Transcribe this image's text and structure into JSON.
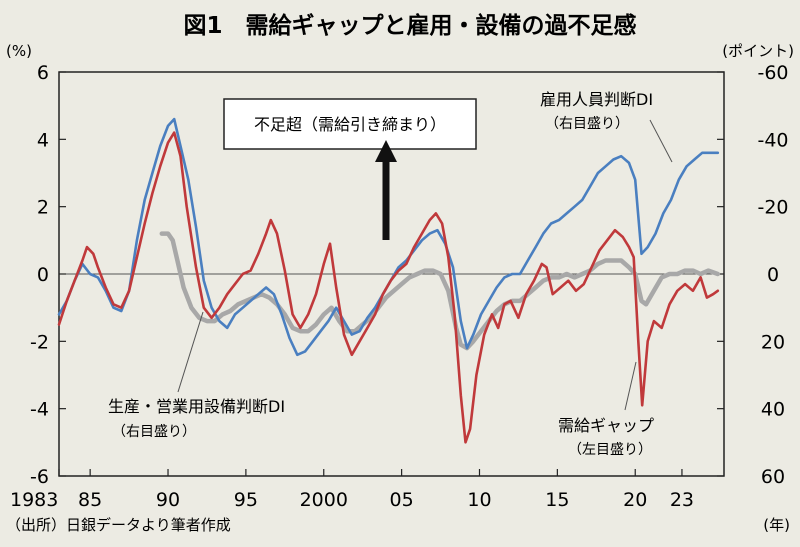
{
  "title": "図1　需給ギャップと雇用・設備の過不足感",
  "source": "（出所）日銀データより筆者作成",
  "colors": {
    "background": "#ecebe3",
    "demand_gap": "#c0393b",
    "employment": "#4a7fc0",
    "equipment": "#a8a8a8",
    "text": "#111111"
  },
  "chart_data": {
    "type": "line",
    "title": "需給ギャップと雇用・設備の過不足感",
    "left_axis": {
      "label": "(%)",
      "range": [
        -6,
        6
      ],
      "ticks": [
        6,
        4,
        2,
        0,
        -2,
        -4,
        -6
      ]
    },
    "right_axis": {
      "label": "(ポイント)",
      "range": [
        -60,
        60
      ],
      "inverted": true,
      "tick_labels": [
        "-60",
        "-40",
        "-20",
        "0",
        "20",
        "40",
        "60"
      ]
    },
    "x_axis": {
      "label": "(年)",
      "range": [
        1983,
        2025.7
      ],
      "ticks": [
        {
          "x": 1983,
          "label": "1983"
        },
        {
          "x": 1985,
          "label": "85"
        },
        {
          "x": 1990,
          "label": "90"
        },
        {
          "x": 1995,
          "label": "95"
        },
        {
          "x": 2000,
          "label": "2000"
        },
        {
          "x": 2005,
          "label": "05"
        },
        {
          "x": 2010,
          "label": "10"
        },
        {
          "x": 2015,
          "label": "15"
        },
        {
          "x": 2020,
          "label": "20"
        },
        {
          "x": 2023,
          "label": "23"
        }
      ]
    },
    "series": [
      {
        "name": "需給ギャップ（左目盛り）",
        "axis": "left",
        "color": "#c0393b",
        "points": [
          [
            1983,
            -1.5
          ],
          [
            1983.5,
            -0.8
          ],
          [
            1984,
            -0.2
          ],
          [
            1984.5,
            0.4
          ],
          [
            1984.8,
            0.8
          ],
          [
            1985.2,
            0.6
          ],
          [
            1985.5,
            0.2
          ],
          [
            1986,
            -0.4
          ],
          [
            1986.5,
            -0.9
          ],
          [
            1987,
            -1.0
          ],
          [
            1987.5,
            -0.5
          ],
          [
            1988,
            0.5
          ],
          [
            1988.5,
            1.5
          ],
          [
            1989,
            2.4
          ],
          [
            1989.5,
            3.2
          ],
          [
            1990,
            3.9
          ],
          [
            1990.4,
            4.2
          ],
          [
            1990.8,
            3.5
          ],
          [
            1991.2,
            2.0
          ],
          [
            1991.8,
            0.2
          ],
          [
            1992.3,
            -1.0
          ],
          [
            1992.8,
            -1.3
          ],
          [
            1993.3,
            -1.0
          ],
          [
            1993.8,
            -0.6
          ],
          [
            1994.3,
            -0.3
          ],
          [
            1994.8,
            0.0
          ],
          [
            1995.3,
            0.1
          ],
          [
            1995.8,
            0.6
          ],
          [
            1996.3,
            1.2
          ],
          [
            1996.6,
            1.6
          ],
          [
            1997,
            1.2
          ],
          [
            1997.5,
            0.1
          ],
          [
            1998,
            -1.2
          ],
          [
            1998.5,
            -1.6
          ],
          [
            1999,
            -1.2
          ],
          [
            1999.5,
            -0.6
          ],
          [
            2000,
            0.3
          ],
          [
            2000.4,
            0.9
          ],
          [
            2000.8,
            -0.4
          ],
          [
            2001.3,
            -1.8
          ],
          [
            2001.8,
            -2.4
          ],
          [
            2002.3,
            -2.0
          ],
          [
            2002.8,
            -1.6
          ],
          [
            2003.3,
            -1.2
          ],
          [
            2003.8,
            -0.6
          ],
          [
            2004.3,
            -0.2
          ],
          [
            2004.8,
            0.1
          ],
          [
            2005.3,
            0.3
          ],
          [
            2005.8,
            0.8
          ],
          [
            2006.3,
            1.2
          ],
          [
            2006.8,
            1.6
          ],
          [
            2007.2,
            1.8
          ],
          [
            2007.6,
            1.5
          ],
          [
            2008,
            0.5
          ],
          [
            2008.4,
            -1.2
          ],
          [
            2008.8,
            -3.6
          ],
          [
            2009.1,
            -5.0
          ],
          [
            2009.4,
            -4.6
          ],
          [
            2009.8,
            -3.0
          ],
          [
            2010.3,
            -1.8
          ],
          [
            2010.8,
            -1.2
          ],
          [
            2011.2,
            -1.6
          ],
          [
            2011.6,
            -0.9
          ],
          [
            2012,
            -0.8
          ],
          [
            2012.5,
            -1.3
          ],
          [
            2013,
            -0.6
          ],
          [
            2013.5,
            -0.2
          ],
          [
            2014,
            0.3
          ],
          [
            2014.3,
            0.2
          ],
          [
            2014.7,
            -0.6
          ],
          [
            2015.2,
            -0.4
          ],
          [
            2015.7,
            -0.2
          ],
          [
            2016.2,
            -0.5
          ],
          [
            2016.7,
            -0.3
          ],
          [
            2017.2,
            0.2
          ],
          [
            2017.7,
            0.7
          ],
          [
            2018.2,
            1.0
          ],
          [
            2018.7,
            1.3
          ],
          [
            2019.2,
            1.1
          ],
          [
            2019.6,
            0.8
          ],
          [
            2019.9,
            0.5
          ],
          [
            2020.2,
            -2.0
          ],
          [
            2020.45,
            -3.9
          ],
          [
            2020.8,
            -2.0
          ],
          [
            2021.2,
            -1.4
          ],
          [
            2021.7,
            -1.6
          ],
          [
            2022.2,
            -0.9
          ],
          [
            2022.7,
            -0.5
          ],
          [
            2023.2,
            -0.3
          ],
          [
            2023.7,
            -0.5
          ],
          [
            2024.2,
            -0.1
          ],
          [
            2024.6,
            -0.7
          ],
          [
            2025,
            -0.6
          ],
          [
            2025.3,
            -0.5
          ]
        ]
      },
      {
        "name": "雇用人員判断DI（右目盛り）",
        "axis": "right",
        "color": "#4a7fc0",
        "points": [
          [
            1983,
            12
          ],
          [
            1983.5,
            8
          ],
          [
            1984,
            2
          ],
          [
            1984.5,
            -3
          ],
          [
            1985,
            0
          ],
          [
            1985.5,
            1
          ],
          [
            1986,
            5
          ],
          [
            1986.5,
            10
          ],
          [
            1987,
            11
          ],
          [
            1987.5,
            5
          ],
          [
            1988,
            -10
          ],
          [
            1988.5,
            -22
          ],
          [
            1989,
            -30
          ],
          [
            1989.5,
            -38
          ],
          [
            1990,
            -44
          ],
          [
            1990.4,
            -46
          ],
          [
            1990.8,
            -38
          ],
          [
            1991.3,
            -28
          ],
          [
            1991.8,
            -14
          ],
          [
            1992.3,
            2
          ],
          [
            1992.8,
            10
          ],
          [
            1993.3,
            14
          ],
          [
            1993.8,
            16
          ],
          [
            1994.3,
            12
          ],
          [
            1994.8,
            10
          ],
          [
            1995.3,
            8
          ],
          [
            1995.8,
            6
          ],
          [
            1996.3,
            4
          ],
          [
            1996.8,
            6
          ],
          [
            1997.3,
            12
          ],
          [
            1997.8,
            19
          ],
          [
            1998.3,
            24
          ],
          [
            1998.8,
            23
          ],
          [
            1999.3,
            20
          ],
          [
            1999.8,
            17
          ],
          [
            2000.3,
            14
          ],
          [
            2000.8,
            10
          ],
          [
            2001.3,
            14
          ],
          [
            2001.8,
            18
          ],
          [
            2002.3,
            17
          ],
          [
            2002.8,
            13
          ],
          [
            2003.3,
            10
          ],
          [
            2003.8,
            6
          ],
          [
            2004.3,
            2
          ],
          [
            2004.8,
            -2
          ],
          [
            2005.3,
            -4
          ],
          [
            2005.8,
            -7
          ],
          [
            2006.3,
            -10
          ],
          [
            2006.8,
            -12
          ],
          [
            2007.3,
            -13
          ],
          [
            2007.8,
            -9
          ],
          [
            2008.3,
            -2
          ],
          [
            2008.8,
            14
          ],
          [
            2009.2,
            22
          ],
          [
            2009.6,
            18
          ],
          [
            2010.1,
            12
          ],
          [
            2010.6,
            8
          ],
          [
            2011.1,
            4
          ],
          [
            2011.6,
            1
          ],
          [
            2012.1,
            0
          ],
          [
            2012.6,
            0
          ],
          [
            2013.1,
            -4
          ],
          [
            2013.6,
            -8
          ],
          [
            2014.1,
            -12
          ],
          [
            2014.6,
            -15
          ],
          [
            2015.1,
            -16
          ],
          [
            2015.6,
            -18
          ],
          [
            2016.1,
            -20
          ],
          [
            2016.6,
            -22
          ],
          [
            2017.1,
            -26
          ],
          [
            2017.6,
            -30
          ],
          [
            2018.1,
            -32
          ],
          [
            2018.6,
            -34
          ],
          [
            2019.1,
            -35
          ],
          [
            2019.6,
            -33
          ],
          [
            2020,
            -28
          ],
          [
            2020.4,
            -6
          ],
          [
            2020.8,
            -8
          ],
          [
            2021.3,
            -12
          ],
          [
            2021.8,
            -18
          ],
          [
            2022.3,
            -22
          ],
          [
            2022.8,
            -28
          ],
          [
            2023.3,
            -32
          ],
          [
            2023.8,
            -34
          ],
          [
            2024.3,
            -36
          ],
          [
            2024.8,
            -36
          ],
          [
            2025.3,
            -36
          ]
        ]
      },
      {
        "name": "生産・営業用設備判断DI（右目盛り）",
        "axis": "right",
        "color": "#a8a8a8",
        "points": [
          [
            1989.6,
            -12
          ],
          [
            1990,
            -12
          ],
          [
            1990.3,
            -10
          ],
          [
            1990.6,
            -4
          ],
          [
            1991,
            4
          ],
          [
            1991.5,
            10
          ],
          [
            1992,
            13
          ],
          [
            1992.5,
            14
          ],
          [
            1993,
            14
          ],
          [
            1993.5,
            12
          ],
          [
            1994,
            11
          ],
          [
            1994.5,
            9
          ],
          [
            1995,
            8
          ],
          [
            1995.5,
            7
          ],
          [
            1996,
            6
          ],
          [
            1996.5,
            7
          ],
          [
            1997,
            9
          ],
          [
            1997.5,
            12
          ],
          [
            1998,
            16
          ],
          [
            1998.5,
            17
          ],
          [
            1999,
            17
          ],
          [
            1999.5,
            15
          ],
          [
            2000,
            12
          ],
          [
            2000.5,
            10
          ],
          [
            2001,
            14
          ],
          [
            2001.5,
            17
          ],
          [
            2002,
            17
          ],
          [
            2002.5,
            15
          ],
          [
            2003,
            13
          ],
          [
            2003.5,
            10
          ],
          [
            2004,
            7
          ],
          [
            2004.5,
            5
          ],
          [
            2005,
            3
          ],
          [
            2005.5,
            1
          ],
          [
            2006,
            0
          ],
          [
            2006.5,
            -1
          ],
          [
            2007,
            -1
          ],
          [
            2007.5,
            0
          ],
          [
            2008,
            5
          ],
          [
            2008.5,
            16
          ],
          [
            2008.8,
            21
          ],
          [
            2009.2,
            22
          ],
          [
            2009.6,
            20
          ],
          [
            2010.1,
            17
          ],
          [
            2010.6,
            14
          ],
          [
            2011.1,
            11
          ],
          [
            2011.6,
            9
          ],
          [
            2012.1,
            8
          ],
          [
            2012.6,
            8
          ],
          [
            2013.1,
            6
          ],
          [
            2013.6,
            4
          ],
          [
            2014.1,
            2
          ],
          [
            2014.6,
            1
          ],
          [
            2015.1,
            1
          ],
          [
            2015.6,
            0
          ],
          [
            2016.1,
            1
          ],
          [
            2016.6,
            0
          ],
          [
            2017.1,
            -1
          ],
          [
            2017.6,
            -3
          ],
          [
            2018.1,
            -4
          ],
          [
            2018.6,
            -4
          ],
          [
            2019.1,
            -4
          ],
          [
            2019.6,
            -2
          ],
          [
            2020,
            0
          ],
          [
            2020.4,
            8
          ],
          [
            2020.7,
            9
          ],
          [
            2021.2,
            5
          ],
          [
            2021.7,
            1
          ],
          [
            2022.2,
            0
          ],
          [
            2022.7,
            0
          ],
          [
            2023.2,
            -1
          ],
          [
            2023.7,
            -1
          ],
          [
            2024.2,
            0
          ],
          [
            2024.7,
            -1
          ],
          [
            2025.3,
            0
          ]
        ]
      }
    ],
    "annotations": {
      "box_label": "不足超（需給引き締まり）",
      "employment_label": "雇用人員判断DI",
      "employment_sub": "（右目盛り）",
      "equipment_label": "生産・営業用設備判断DI",
      "equipment_sub": "（右目盛り）",
      "gap_label": "需給ギャップ",
      "gap_sub": "（左目盛り）"
    }
  }
}
